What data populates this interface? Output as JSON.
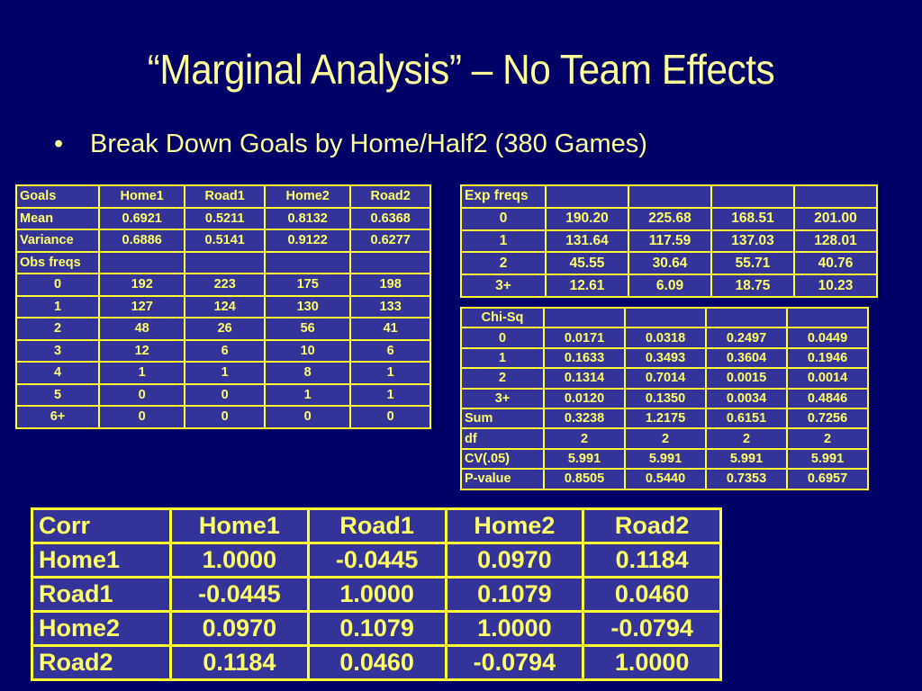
{
  "slide": {
    "title": "“Marginal Analysis” – No Team Effects",
    "bullet_symbol": "•",
    "bullet_text": "Break Down Goals by Home/Half2 (380 Games)"
  },
  "colors": {
    "background": "#000066",
    "table_fill": "#333399",
    "border": "#ffff33",
    "text": "#ffff99"
  },
  "obs_table": {
    "header": [
      "Goals",
      "Home1",
      "Road1",
      "Home2",
      "Road2"
    ],
    "rows": [
      [
        "Mean",
        "0.6921",
        "0.5211",
        "0.8132",
        "0.6368"
      ],
      [
        "Variance",
        "0.6886",
        "0.5141",
        "0.9122",
        "0.6277"
      ],
      [
        "Obs freqs",
        "",
        "",
        "",
        ""
      ],
      [
        "0",
        "192",
        "223",
        "175",
        "198"
      ],
      [
        "1",
        "127",
        "124",
        "130",
        "133"
      ],
      [
        "2",
        "48",
        "26",
        "56",
        "41"
      ],
      [
        "3",
        "12",
        "6",
        "10",
        "6"
      ],
      [
        "4",
        "1",
        "1",
        "8",
        "1"
      ],
      [
        "5",
        "0",
        "0",
        "1",
        "1"
      ],
      [
        "6+",
        "0",
        "0",
        "0",
        "0"
      ]
    ]
  },
  "exp_table": {
    "header": [
      "Exp freqs",
      "",
      "",
      "",
      ""
    ],
    "rows": [
      [
        "0",
        "190.20",
        "225.68",
        "168.51",
        "201.00"
      ],
      [
        "1",
        "131.64",
        "117.59",
        "137.03",
        "128.01"
      ],
      [
        "2",
        "45.55",
        "30.64",
        "55.71",
        "40.76"
      ],
      [
        "3+",
        "12.61",
        "6.09",
        "18.75",
        "10.23"
      ]
    ]
  },
  "chi_table": {
    "header": [
      "Chi-Sq",
      "",
      "",
      "",
      ""
    ],
    "rows": [
      [
        "0",
        "0.0171",
        "0.0318",
        "0.2497",
        "0.0449"
      ],
      [
        "1",
        "0.1633",
        "0.3493",
        "0.3604",
        "0.1946"
      ],
      [
        "2",
        "0.1314",
        "0.7014",
        "0.0015",
        "0.0014"
      ],
      [
        "3+",
        "0.0120",
        "0.1350",
        "0.0034",
        "0.4846"
      ],
      [
        "Sum",
        "0.3238",
        "1.2175",
        "0.6151",
        "0.7256"
      ],
      [
        "df",
        "2",
        "2",
        "2",
        "2"
      ],
      [
        "CV(.05)",
        "5.991",
        "5.991",
        "5.991",
        "5.991"
      ],
      [
        "P-value",
        "0.8505",
        "0.5440",
        "0.7353",
        "0.6957"
      ]
    ]
  },
  "corr_table": {
    "header": [
      "Corr",
      "Home1",
      "Road1",
      "Home2",
      "Road2"
    ],
    "rows": [
      [
        "Home1",
        "1.0000",
        "-0.0445",
        "0.0970",
        "0.1184"
      ],
      [
        "Road1",
        "-0.0445",
        "1.0000",
        "0.1079",
        "0.0460"
      ],
      [
        "Home2",
        "0.0970",
        "0.1079",
        "1.0000",
        "-0.0794"
      ],
      [
        "Road2",
        "0.1184",
        "0.0460",
        "-0.0794",
        "1.0000"
      ]
    ]
  }
}
